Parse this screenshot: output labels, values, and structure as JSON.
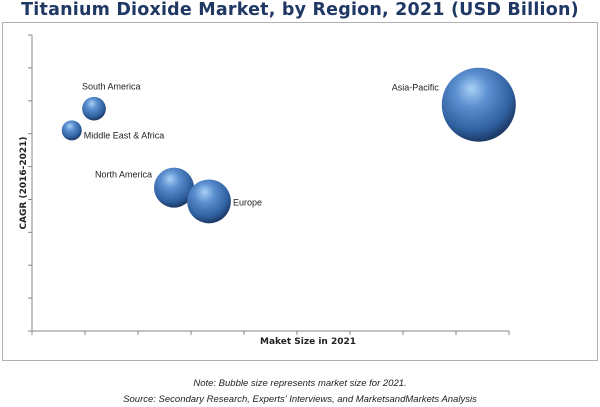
{
  "chart_data": {
    "type": "bubble",
    "title": "Titanium Dioxide Market, by Region, 2021 (USD Billion)",
    "xlabel": "Maket Size in 2021",
    "ylabel": "CAGR (2016-2021)",
    "xlim": [
      0,
      9
    ],
    "ylim": [
      0,
      9
    ],
    "x_tick_count": 10,
    "y_tick_count": 10,
    "tick_labels_shown": false,
    "grid": false,
    "bubble_color": "#4a7ebb",
    "points": [
      {
        "label": "South America",
        "x": 1.17,
        "y": 6.76,
        "size": 1.4
      },
      {
        "label": "Middle East & Africa",
        "x": 0.75,
        "y": 6.1,
        "size": 1.0
      },
      {
        "label": "North America",
        "x": 2.68,
        "y": 4.36,
        "size": 4.0
      },
      {
        "label": "Europe",
        "x": 3.34,
        "y": 3.94,
        "size": 4.8
      },
      {
        "label": "Asia-Pacific",
        "x": 8.43,
        "y": 6.88,
        "size": 13.7
      }
    ]
  },
  "footer": {
    "note": "Note: Bubble size represents market size for 2021.",
    "source": "Source: Secondary Research, Experts' Interviews, and MarketsandMarkets Analysis"
  }
}
